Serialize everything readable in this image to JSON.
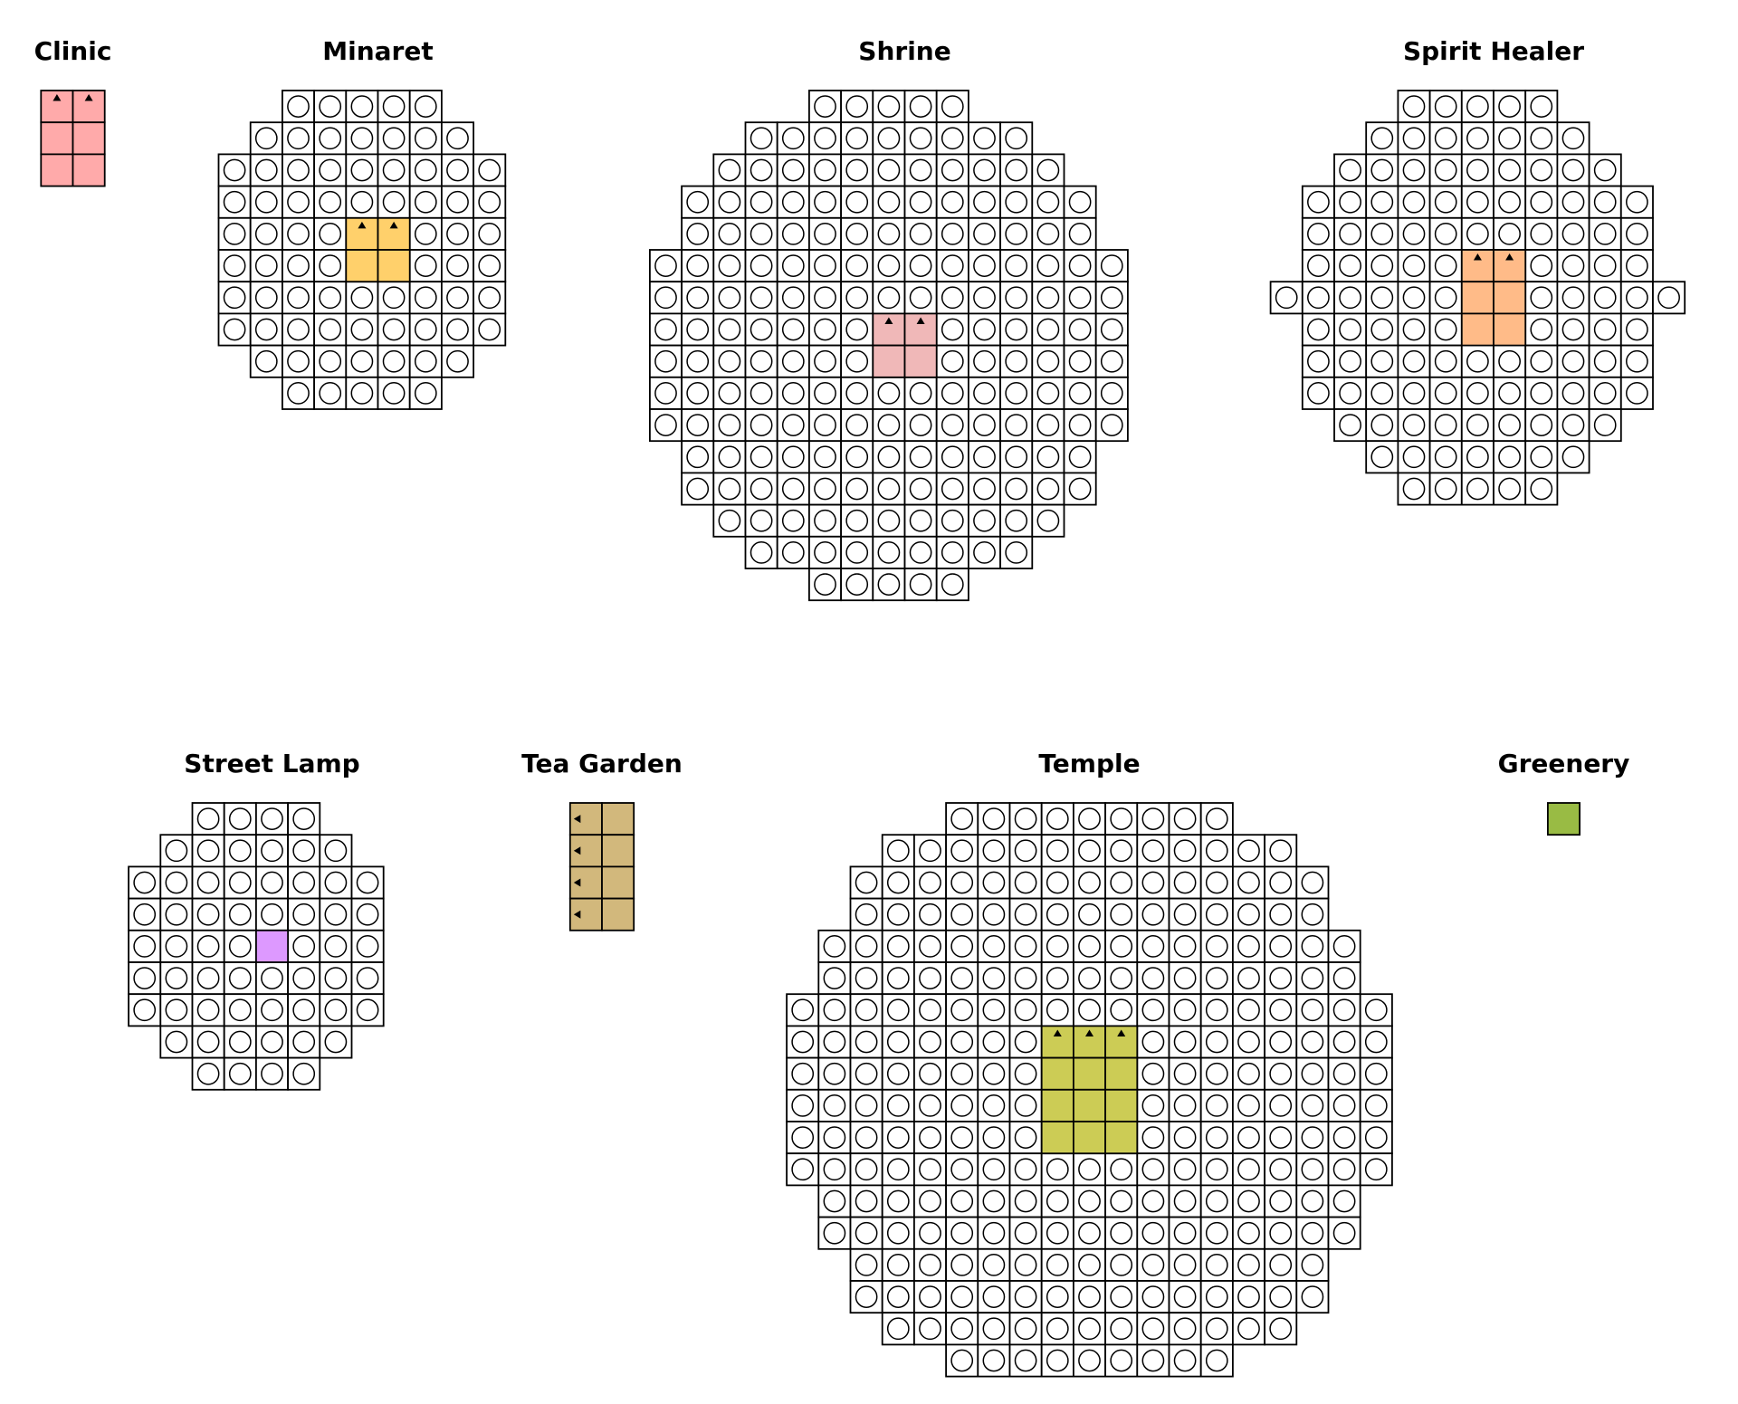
{
  "colors": {
    "influence": "#ffffff",
    "outline": "#000000",
    "entrance_marker": "#000000"
  },
  "buildings": [
    {
      "name": "Clinic",
      "footprint": {
        "cols": 2,
        "rows": 3,
        "color": "#ffaaaa",
        "entrance": "top"
      },
      "influence": []
    },
    {
      "name": "Minaret",
      "footprint": {
        "cols": 2,
        "rows": 2,
        "color": "#ffd06b",
        "entrance": "top"
      },
      "influence": [
        [
          -2,
          5
        ],
        [
          -3,
          7
        ],
        [
          -4,
          9
        ],
        [
          -4,
          9
        ],
        [
          -4,
          9
        ],
        [
          -4,
          9
        ],
        [
          -4,
          9
        ],
        [
          -4,
          9
        ],
        [
          -3,
          7
        ],
        [
          -2,
          5
        ]
      ]
    },
    {
      "name": "Shrine",
      "footprint": {
        "cols": 2,
        "rows": 2,
        "color": "#f0b8b8",
        "entrance": "top"
      },
      "influence": [
        [
          -2,
          5
        ],
        [
          -4,
          9
        ],
        [
          -5,
          11
        ],
        [
          -6,
          13
        ],
        [
          -6,
          13
        ],
        [
          -7,
          15
        ],
        [
          -7,
          15
        ],
        [
          -7,
          15
        ],
        [
          -7,
          15
        ],
        [
          -7,
          15
        ],
        [
          -7,
          15
        ],
        [
          -6,
          13
        ],
        [
          -6,
          13
        ],
        [
          -5,
          11
        ],
        [
          -4,
          9
        ],
        [
          -2,
          5
        ]
      ]
    },
    {
      "name": "Spirit Healer",
      "footprint": {
        "cols": 2,
        "rows": 3,
        "color": "#ffbb88",
        "entrance": "top"
      },
      "influence": [
        [
          -2,
          5
        ],
        [
          -3,
          7
        ],
        [
          -4,
          9
        ],
        [
          -5,
          11
        ],
        [
          -5,
          11
        ],
        [
          -5,
          11
        ],
        [
          -6,
          13
        ],
        [
          -5,
          11
        ],
        [
          -5,
          11
        ],
        [
          -5,
          11
        ],
        [
          -4,
          9
        ],
        [
          -3,
          7
        ],
        [
          -2,
          5
        ]
      ]
    },
    {
      "name": "Street Lamp",
      "footprint": {
        "cols": 1,
        "rows": 1,
        "color": "#dd99ff",
        "entrance": "none"
      },
      "influence": [
        [
          -2,
          4
        ],
        [
          -3,
          6
        ],
        [
          -4,
          8
        ],
        [
          -4,
          8
        ],
        [
          -4,
          8
        ],
        [
          -4,
          8
        ],
        [
          -4,
          8
        ],
        [
          -3,
          6
        ],
        [
          -2,
          4
        ]
      ]
    },
    {
      "name": "Tea Garden",
      "footprint": {
        "cols": 2,
        "rows": 4,
        "color": "#d2b87c",
        "entrance": "left"
      },
      "influence": []
    },
    {
      "name": "Temple",
      "footprint": {
        "cols": 3,
        "rows": 4,
        "color": "#cccc55",
        "entrance": "top"
      },
      "influence": [
        [
          -3,
          9
        ],
        [
          -5,
          13
        ],
        [
          -6,
          15
        ],
        [
          -6,
          15
        ],
        [
          -7,
          17
        ],
        [
          -7,
          17
        ],
        [
          -8,
          19
        ],
        [
          -8,
          19
        ],
        [
          -8,
          19
        ],
        [
          -8,
          19
        ],
        [
          -8,
          19
        ],
        [
          -8,
          19
        ],
        [
          -7,
          17
        ],
        [
          -7,
          17
        ],
        [
          -6,
          15
        ],
        [
          -6,
          15
        ],
        [
          -5,
          13
        ],
        [
          -3,
          9
        ]
      ]
    },
    {
      "name": "Greenery",
      "footprint": {
        "cols": 1,
        "rows": 1,
        "color": "#99bb44",
        "entrance": "none"
      },
      "influence": []
    }
  ]
}
